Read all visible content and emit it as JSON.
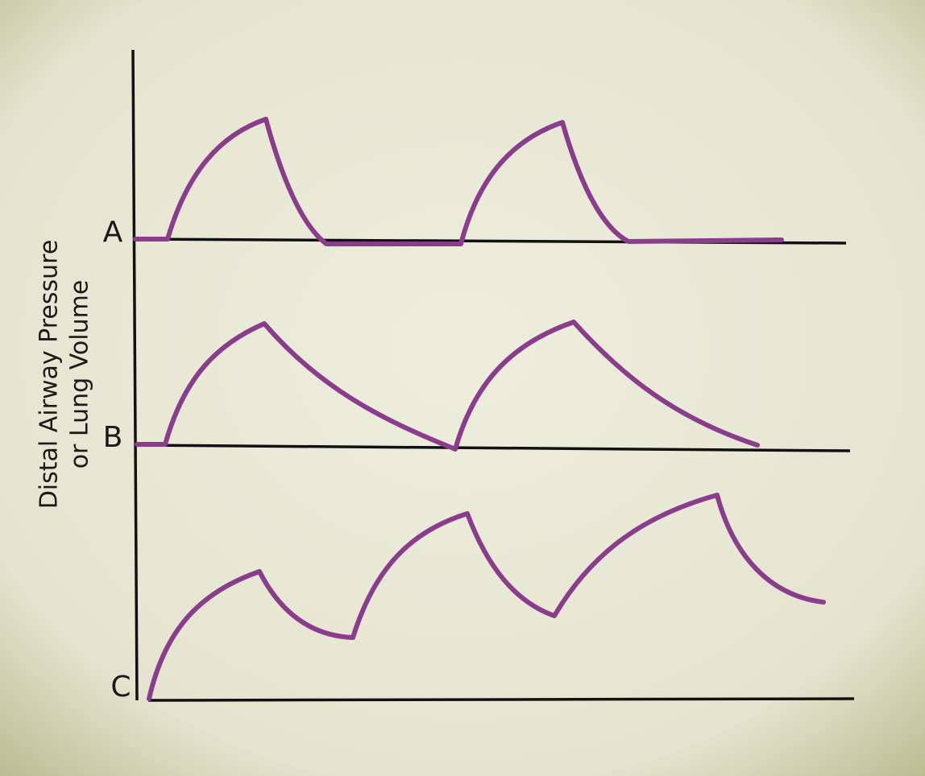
{
  "y_axis_label": {
    "lines": [
      "Distal Airway Pressure",
      "or Lung Volume"
    ]
  },
  "panels": [
    {
      "label": "A"
    },
    {
      "label": "B"
    },
    {
      "label": "C"
    }
  ]
}
